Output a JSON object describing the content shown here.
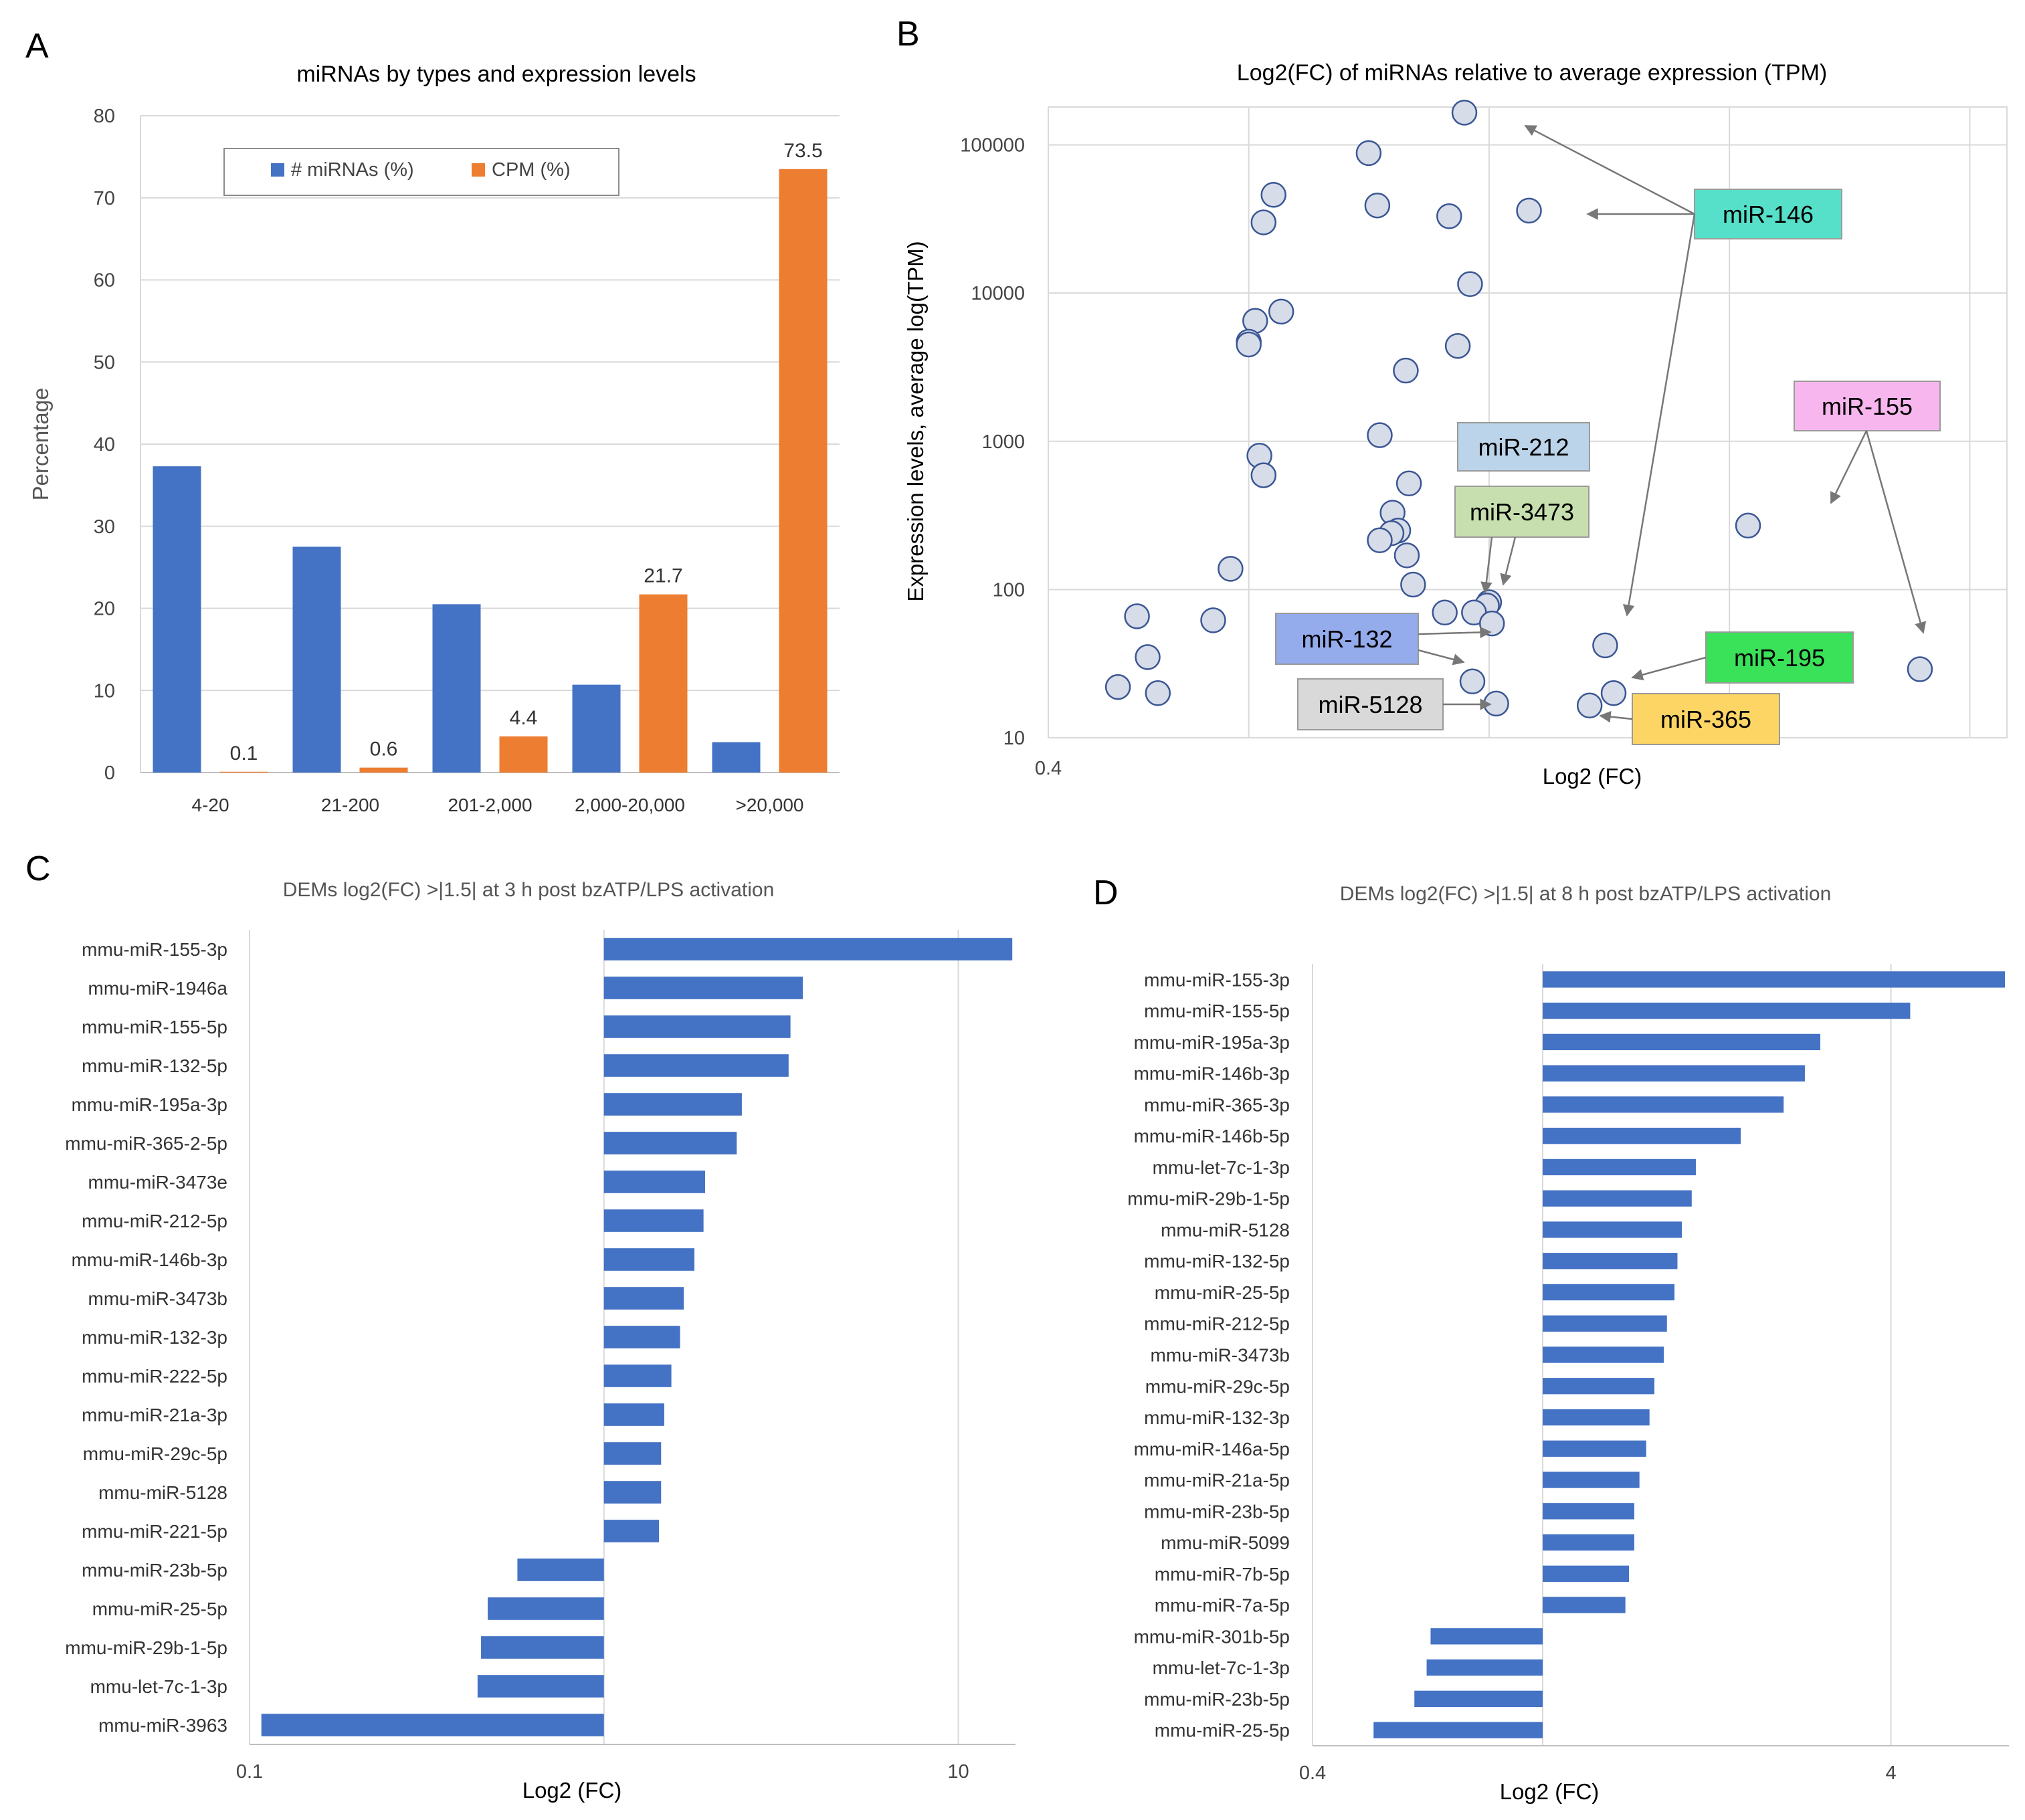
{
  "panel_labels": {
    "a": "A",
    "b": "B",
    "c": "C",
    "d": "D"
  },
  "colors": {
    "blue": "#4472c4",
    "orange": "#ed7d31",
    "grid": "#d9d9d9",
    "point_fill": "#d6dce8",
    "point_stroke": "#3b5694"
  },
  "chart_data": [
    {
      "panel": "A",
      "type": "bar",
      "title": "miRNAs by types and expression levels",
      "xlabel": "",
      "ylabel": "Percentage",
      "ylim": [
        0,
        80
      ],
      "yticks": [
        0,
        10,
        20,
        30,
        40,
        50,
        60,
        70,
        80
      ],
      "grid": true,
      "legend_position": "top-center",
      "categories": [
        "4-20",
        "21-200",
        "201-2,000",
        "2,000-20,000",
        ">20,000"
      ],
      "series": [
        {
          "name": "# miRNAs (%)",
          "color": "#4472c4",
          "values": [
            37.3,
            27.5,
            20.5,
            10.7,
            3.7
          ],
          "labels": [
            "",
            "",
            "",
            "",
            ""
          ]
        },
        {
          "name": "CPM (%)",
          "color": "#ed7d31",
          "values": [
            0.1,
            0.6,
            4.4,
            21.7,
            73.5
          ],
          "labels": [
            "0.1",
            "0.6",
            "4.4",
            "21.7",
            "73.5"
          ]
        }
      ]
    },
    {
      "panel": "B",
      "type": "scatter",
      "title": "Log2(FC) of miRNAs relative to average expression (TPM)",
      "xlabel": "Log2 (FC)",
      "ylabel": "Expression levels, average log(TPM)",
      "xlim": [
        0.4,
        32
      ],
      "xscale": "log",
      "xticks": [
        0.4
      ],
      "ylim": [
        10,
        180000
      ],
      "yscale": "log",
      "yticks": [
        10,
        100,
        1000,
        10000,
        100000
      ],
      "ytick_labels": [
        "10",
        "100",
        "1000",
        "10000",
        "100000"
      ],
      "grid": true,
      "points": [
        {
          "x": 2.68,
          "y": 165000
        },
        {
          "x": 1.73,
          "y": 88000
        },
        {
          "x": 2.5,
          "y": 33000
        },
        {
          "x": 1.8,
          "y": 39000
        },
        {
          "x": 3.6,
          "y": 36000
        },
        {
          "x": 1.12,
          "y": 46000
        },
        {
          "x": 1.07,
          "y": 30000
        },
        {
          "x": 2.75,
          "y": 11500
        },
        {
          "x": 1.16,
          "y": 7500
        },
        {
          "x": 1.03,
          "y": 6500
        },
        {
          "x": 1.0,
          "y": 4700
        },
        {
          "x": 1.0,
          "y": 4500
        },
        {
          "x": 2.6,
          "y": 4400
        },
        {
          "x": 2.05,
          "y": 3000
        },
        {
          "x": 1.82,
          "y": 1100
        },
        {
          "x": 1.05,
          "y": 800
        },
        {
          "x": 1.07,
          "y": 590
        },
        {
          "x": 2.08,
          "y": 520
        },
        {
          "x": 1.93,
          "y": 330
        },
        {
          "x": 1.98,
          "y": 250
        },
        {
          "x": 1.92,
          "y": 240
        },
        {
          "x": 1.82,
          "y": 215
        },
        {
          "x": 2.06,
          "y": 170
        },
        {
          "x": 0.92,
          "y": 138
        },
        {
          "x": 2.12,
          "y": 108
        },
        {
          "x": 3.0,
          "y": 82
        },
        {
          "x": 2.97,
          "y": 78
        },
        {
          "x": 2.45,
          "y": 70
        },
        {
          "x": 2.8,
          "y": 70
        },
        {
          "x": 0.6,
          "y": 66
        },
        {
          "x": 0.85,
          "y": 62
        },
        {
          "x": 3.04,
          "y": 59
        },
        {
          "x": 5.1,
          "y": 42
        },
        {
          "x": 0.63,
          "y": 35
        },
        {
          "x": 2.78,
          "y": 24
        },
        {
          "x": 0.55,
          "y": 22
        },
        {
          "x": 0.66,
          "y": 20
        },
        {
          "x": 5.3,
          "y": 20
        },
        {
          "x": 3.1,
          "y": 17
        },
        {
          "x": 4.75,
          "y": 16.5
        },
        {
          "x": 9.8,
          "y": 270
        },
        {
          "x": 21.5,
          "y": 29
        }
      ],
      "annotations": [
        {
          "label": "miR-146",
          "color": "#57e0c9"
        },
        {
          "label": "miR-155",
          "color": "#f7b6ee"
        },
        {
          "label": "miR-212",
          "color": "#bcd4ea"
        },
        {
          "label": "miR-3473",
          "color": "#c7dfae"
        },
        {
          "label": "miR-132",
          "color": "#94abec"
        },
        {
          "label": "miR-5128",
          "color": "#d9d9d9"
        },
        {
          "label": "miR-195",
          "color": "#3ae25a"
        },
        {
          "label": "miR-365",
          "color": "#fdd565"
        }
      ]
    },
    {
      "panel": "C",
      "type": "bar",
      "orientation": "horizontal",
      "title": "DEMs log2(FC) >|1.5|  at 3 h post bzATP/LPS activation",
      "xlabel": "Log2 (FC)",
      "xscale": "log",
      "xlim": [
        0.1,
        14.5
      ],
      "xticks": [
        0.1,
        1,
        10
      ],
      "xtick_labels": [
        "0.1",
        "",
        "10"
      ],
      "grid": true,
      "categories": [
        "mmu-miR-155-3p",
        "mmu-miR-1946a",
        "mmu-miR-155-5p",
        "mmu-miR-132-5p",
        "mmu-miR-195a-3p",
        "mmu-miR-365-2-5p",
        "mmu-miR-3473e",
        "mmu-miR-212-5p",
        "mmu-miR-146b-3p",
        "mmu-miR-3473b",
        "mmu-miR-132-3p",
        "mmu-miR-222-5p",
        "mmu-miR-21a-3p",
        "mmu-miR-29c-5p",
        "mmu-miR-5128",
        "mmu-miR-221-5p",
        "mmu-miR-23b-5p",
        "mmu-miR-25-5p",
        "mmu-miR-29b-1-5p",
        "mmu-let-7c-1-3p",
        "mmu-miR-3963"
      ],
      "values": [
        14.2,
        3.64,
        3.36,
        3.32,
        2.45,
        2.37,
        1.93,
        1.91,
        1.8,
        1.68,
        1.64,
        1.55,
        1.48,
        1.45,
        1.45,
        1.43,
        0.57,
        0.47,
        0.45,
        0.44,
        0.108
      ]
    },
    {
      "panel": "D",
      "type": "bar",
      "orientation": "horizontal",
      "title": "DEMs log2(FC) >|1.5|  at 8 h post bzATP/LPS activation",
      "xlabel": "Log2 (FC)",
      "xscale": "log",
      "xlim": [
        0.4,
        6.4
      ],
      "xticks": [
        0.4,
        1,
        4
      ],
      "xtick_labels": [
        "0.4",
        "",
        "4"
      ],
      "grid": true,
      "categories": [
        "mmu-miR-155-3p",
        "mmu-miR-155-5p",
        "mmu-miR-195a-3p",
        "mmu-miR-146b-3p",
        "mmu-miR-365-3p",
        "mmu-miR-146b-5p",
        "mmu-let-7c-1-3p",
        "mmu-miR-29b-1-5p",
        "mmu-miR-5128",
        "mmu-miR-132-5p",
        "mmu-miR-25-5p",
        "mmu-miR-212-5p",
        "mmu-miR-3473b",
        "mmu-miR-29c-5p",
        "mmu-miR-132-3p",
        "mmu-miR-146a-5p",
        "mmu-miR-21a-5p",
        "mmu-miR-23b-5p",
        "mmu-miR-5099",
        "mmu-miR-7b-5p",
        "mmu-miR-7a-5p",
        "mmu-miR-301b-5p",
        "mmu-let-7c-1-3p",
        "mmu-miR-23b-5p",
        "mmu-miR-25-5p"
      ],
      "values": [
        6.3,
        4.32,
        3.02,
        2.84,
        2.61,
        2.2,
        1.84,
        1.81,
        1.74,
        1.71,
        1.69,
        1.64,
        1.62,
        1.56,
        1.53,
        1.51,
        1.47,
        1.44,
        1.44,
        1.41,
        1.39,
        0.64,
        0.63,
        0.6,
        0.51
      ]
    }
  ]
}
